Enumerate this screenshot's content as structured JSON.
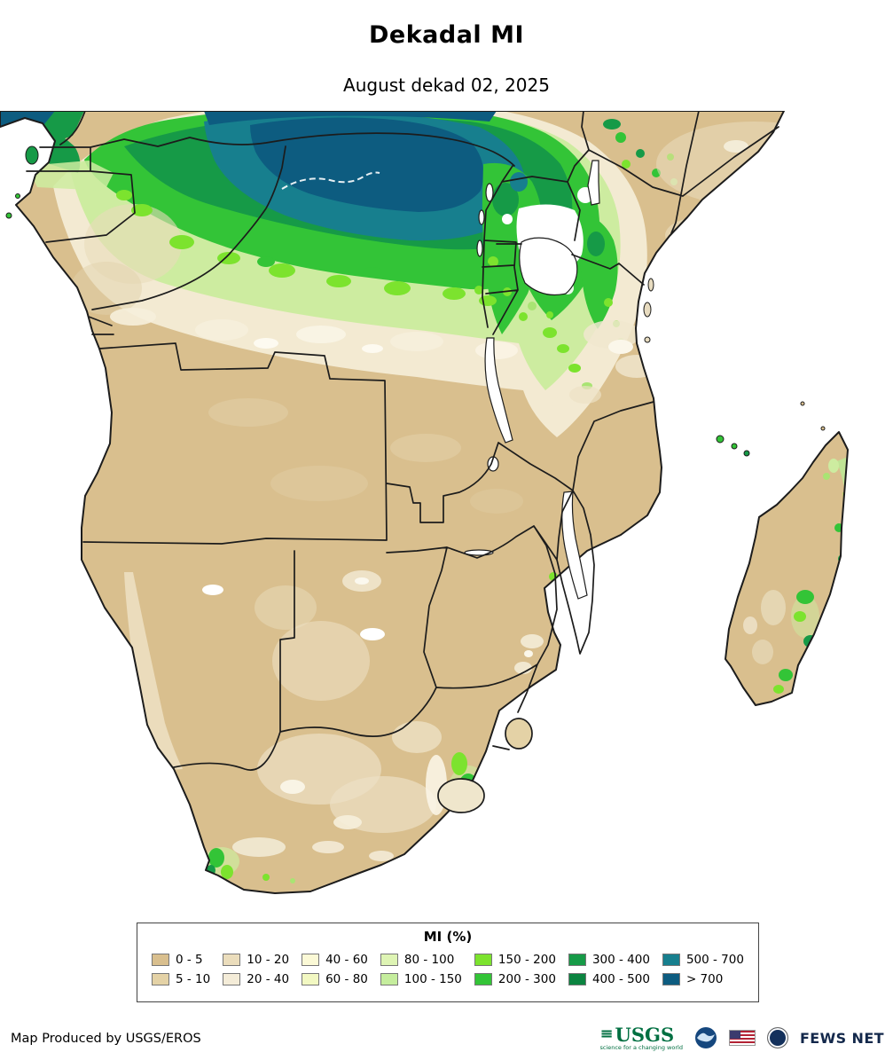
{
  "header": {
    "title": "Dekadal MI",
    "subtitle": "August dekad 02, 2025"
  },
  "legend": {
    "title": "MI (%)",
    "items": [
      {
        "label": "0 - 5",
        "color": "#d9bf8e"
      },
      {
        "label": "5 - 10",
        "color": "#e4d2a6"
      },
      {
        "label": "10 - 20",
        "color": "#ebddbc"
      },
      {
        "label": "20 - 40",
        "color": "#f4ecd8"
      },
      {
        "label": "40 - 60",
        "color": "#fbf9d6"
      },
      {
        "label": "60 - 80",
        "color": "#f2f8c2"
      },
      {
        "label": "80 - 100",
        "color": "#def4b4"
      },
      {
        "label": "100 - 150",
        "color": "#c5ed9d"
      },
      {
        "label": "150 - 200",
        "color": "#7ce32e"
      },
      {
        "label": "200 - 300",
        "color": "#33c437"
      },
      {
        "label": "300 - 400",
        "color": "#169a47"
      },
      {
        "label": "400 - 500",
        "color": "#0b8440"
      },
      {
        "label": "500 - 700",
        "color": "#177f8e"
      },
      {
        "label": "> 700",
        "color": "#0d5c80"
      }
    ]
  },
  "map": {
    "land_color": "#d9bf8e",
    "ocean_color": "#ffffff",
    "border_color": "#1c1c1c"
  },
  "footer": {
    "credit": "Map Produced by USGS/EROS",
    "logos": {
      "usgs_text": "USGS",
      "usgs_tagline": "science for a changing world",
      "fewsnet_text": "FEWS NET"
    }
  }
}
